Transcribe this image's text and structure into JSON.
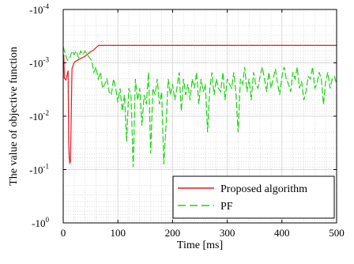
{
  "chart_data": {
    "type": "line",
    "xlabel": "Time [ms]",
    "ylabel": "The value of objective function",
    "xlim": [
      0,
      500
    ],
    "x_ticks": [
      {
        "value": 0,
        "label": "0"
      },
      {
        "value": 100,
        "label": "100"
      },
      {
        "value": 200,
        "label": "200"
      },
      {
        "value": 300,
        "label": "300"
      },
      {
        "value": 400,
        "label": "400"
      },
      {
        "value": 500,
        "label": "500"
      }
    ],
    "y_scale": "symmetric-log (negative values, magnitude increasing downward)",
    "y_ticks": [
      {
        "value": -0.0001,
        "base": "-10",
        "exp": "-4"
      },
      {
        "value": -0.001,
        "base": "-10",
        "exp": "-3"
      },
      {
        "value": -0.01,
        "base": "-10",
        "exp": "-2"
      },
      {
        "value": -0.1,
        "base": "-10",
        "exp": "-1"
      },
      {
        "value": -1,
        "base": "-10",
        "exp": "0"
      }
    ],
    "ylim": [
      -0.0001,
      -1
    ],
    "grid": true,
    "legend_position": "bottom-right",
    "series": [
      {
        "name": "Proposed algorithm",
        "color": "#e8191e",
        "style": "solid",
        "x": [
          0,
          1,
          2,
          3,
          5,
          7,
          9,
          10,
          11,
          12,
          13,
          14,
          16,
          20,
          30,
          40,
          50,
          55,
          60,
          65,
          80,
          100,
          150,
          200,
          250,
          300,
          350,
          400,
          450,
          500
        ],
        "y": [
          -0.00115,
          -0.0007,
          -0.0019,
          -0.002,
          -0.0021,
          -0.0017,
          -0.0014,
          -0.03,
          -0.06,
          -0.075,
          -0.072,
          -0.025,
          -0.0013,
          -0.00098,
          -0.00085,
          -0.00075,
          -0.00062,
          -0.00058,
          -0.00052,
          -0.00047,
          -0.00047,
          -0.00047,
          -0.00047,
          -0.00047,
          -0.00047,
          -0.00047,
          -0.00047,
          -0.00047,
          -0.00047,
          -0.00047
        ]
      },
      {
        "name": "PF",
        "color": "#1bd40f",
        "style": "dashed",
        "x": [
          0,
          4,
          8,
          12,
          16,
          20,
          24,
          28,
          32,
          36,
          40,
          44,
          48,
          52,
          56,
          60,
          64,
          68,
          72,
          76,
          80,
          84,
          88,
          92,
          96,
          100,
          104,
          108,
          112,
          116,
          120,
          124,
          128,
          132,
          136,
          140,
          144,
          148,
          152,
          156,
          160,
          164,
          168,
          172,
          176,
          180,
          184,
          188,
          192,
          196,
          200,
          204,
          208,
          212,
          216,
          220,
          224,
          228,
          232,
          236,
          240,
          244,
          248,
          252,
          256,
          260,
          264,
          268,
          272,
          276,
          280,
          284,
          288,
          292,
          296,
          300,
          304,
          308,
          312,
          316,
          320,
          324,
          328,
          332,
          336,
          340,
          344,
          348,
          352,
          356,
          360,
          364,
          368,
          372,
          376,
          380,
          384,
          388,
          392,
          396,
          400,
          404,
          408,
          412,
          416,
          420,
          424,
          428,
          432,
          436,
          440,
          444,
          448,
          452,
          456,
          460,
          464,
          468,
          472,
          476,
          480,
          484,
          488,
          492,
          496,
          500
        ],
        "y": [
          -0.0005,
          -0.0007,
          -0.0009,
          -0.0008,
          -0.0006,
          -0.0007,
          -0.0006,
          -0.0008,
          -0.0006,
          -0.0007,
          -0.0006,
          -0.0007,
          -0.0008,
          -0.0009,
          -0.0015,
          -0.0012,
          -0.002,
          -0.0015,
          -0.003,
          -0.0025,
          -0.002,
          -0.0035,
          -0.004,
          -0.002,
          -0.003,
          -0.0055,
          -0.003,
          -0.008,
          -0.004,
          -0.03,
          -0.003,
          -0.004,
          -0.09,
          -0.002,
          -0.005,
          -0.003,
          -0.015,
          -0.004,
          -0.006,
          -0.0015,
          -0.05,
          -0.003,
          -0.004,
          -0.002,
          -0.006,
          -0.0035,
          -0.08,
          -0.015,
          -0.002,
          -0.004,
          -0.0025,
          -0.005,
          -0.003,
          -0.0015,
          -0.008,
          -0.002,
          -0.004,
          -0.0025,
          -0.005,
          -0.002,
          -0.003,
          -0.0015,
          -0.006,
          -0.002,
          -0.0035,
          -0.0025,
          -0.02,
          -0.003,
          -0.0015,
          -0.004,
          -0.002,
          -0.003,
          -0.0035,
          -0.0015,
          -0.005,
          -0.002,
          -0.0025,
          -0.003,
          -0.0015,
          -0.004,
          -0.02,
          -0.002,
          -0.0025,
          -0.0012,
          -0.0035,
          -0.002,
          -0.005,
          -0.0015,
          -0.0025,
          -0.003,
          -0.0018,
          -0.0012,
          -0.002,
          -0.0035,
          -0.0015,
          -0.003,
          -0.002,
          -0.0013,
          -0.0025,
          -0.004,
          -0.0018,
          -0.0012,
          -0.002,
          -0.0025,
          -0.0035,
          -0.0015,
          -0.002,
          -0.0012,
          -0.003,
          -0.0022,
          -0.005,
          -0.0035,
          -0.0018,
          -0.002,
          -0.0012,
          -0.003,
          -0.0025,
          -0.0015,
          -0.002,
          -0.006,
          -0.0022,
          -0.0015,
          -0.003,
          -0.002,
          -0.0018,
          -0.0025
        ]
      }
    ]
  }
}
